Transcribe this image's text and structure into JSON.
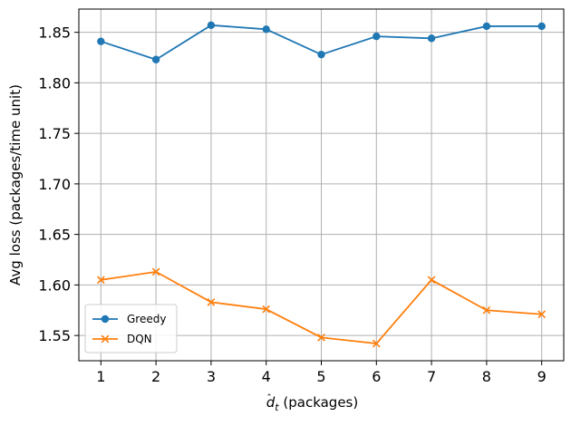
{
  "chart_data": {
    "type": "line",
    "title": "",
    "xlabel_base": "d",
    "xlabel_hat": "ˆ",
    "xlabel_sub": "t",
    "xlabel_rest": " (packages)",
    "ylabel": "Avg loss (packages/time unit)",
    "x": [
      1,
      2,
      3,
      4,
      5,
      6,
      7,
      8,
      9
    ],
    "x_tick_labels": [
      "1",
      "2",
      "3",
      "4",
      "5",
      "6",
      "7",
      "8",
      "9"
    ],
    "xlim": [
      0.6,
      9.4
    ],
    "ylim": [
      1.525,
      1.873
    ],
    "y_ticks": [
      1.55,
      1.6,
      1.65,
      1.7,
      1.75,
      1.8,
      1.85
    ],
    "y_tick_labels": [
      "1.55",
      "1.60",
      "1.65",
      "1.70",
      "1.75",
      "1.80",
      "1.85"
    ],
    "grid": true,
    "legend_position": "lower-left",
    "series": [
      {
        "name": "Greedy",
        "marker": "circle",
        "color": "#1f77b4",
        "values": [
          1.841,
          1.823,
          1.857,
          1.853,
          1.828,
          1.846,
          1.844,
          1.856,
          1.856
        ]
      },
      {
        "name": "DQN",
        "marker": "x",
        "color": "#ff7f0e",
        "values": [
          1.605,
          1.613,
          1.583,
          1.576,
          1.548,
          1.542,
          1.605,
          1.575,
          1.571
        ]
      }
    ]
  }
}
